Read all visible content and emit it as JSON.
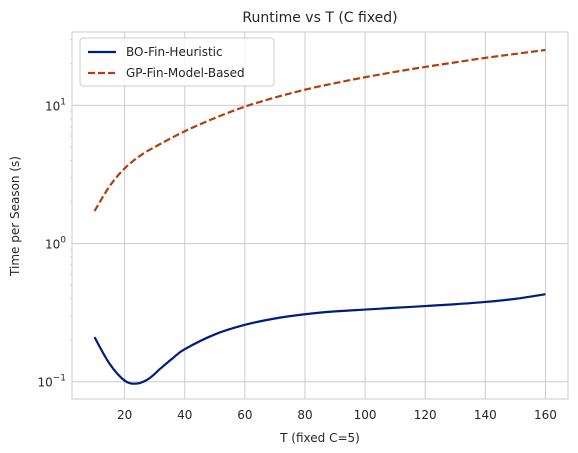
{
  "chart_data": {
    "type": "line",
    "title": "Runtime vs T (C fixed)",
    "xlabel": "T (fixed C=5)",
    "ylabel": "Time per Season (s)",
    "xlim": [
      2.5,
      167.5
    ],
    "ylim": [
      0.075,
      34
    ],
    "yscale": "log",
    "grid": true,
    "legend_position": "top-left",
    "x_ticks": [
      20,
      40,
      60,
      80,
      100,
      120,
      140,
      160
    ],
    "y_ticks": [
      0.1,
      1,
      10
    ],
    "y_tick_labels": [
      {
        "base": "10",
        "exp": "−1"
      },
      {
        "base": "10",
        "exp": "0"
      },
      {
        "base": "10",
        "exp": "1"
      }
    ],
    "series": [
      {
        "name": "BO-Fin-Heuristic",
        "color": "#001c7f",
        "style": "solid",
        "x": [
          10,
          15,
          20,
          24,
          28,
          32,
          36,
          40,
          50,
          60,
          70,
          80,
          90,
          100,
          110,
          120,
          130,
          140,
          150,
          160
        ],
        "y": [
          0.21,
          0.135,
          0.102,
          0.097,
          0.105,
          0.125,
          0.148,
          0.172,
          0.22,
          0.258,
          0.287,
          0.308,
          0.323,
          0.333,
          0.343,
          0.353,
          0.364,
          0.378,
          0.398,
          0.43
        ]
      },
      {
        "name": "GP-Fin-Model-Based",
        "color": "#b1400d",
        "style": "dashed",
        "x": [
          10,
          15,
          20,
          25,
          30,
          40,
          50,
          60,
          70,
          80,
          90,
          100,
          110,
          120,
          130,
          140,
          150,
          160
        ],
        "y": [
          1.72,
          2.6,
          3.5,
          4.3,
          5.0,
          6.5,
          8.1,
          9.8,
          11.4,
          13.0,
          14.5,
          16.0,
          17.5,
          19.0,
          20.5,
          22.1,
          23.6,
          25.2
        ]
      }
    ]
  }
}
